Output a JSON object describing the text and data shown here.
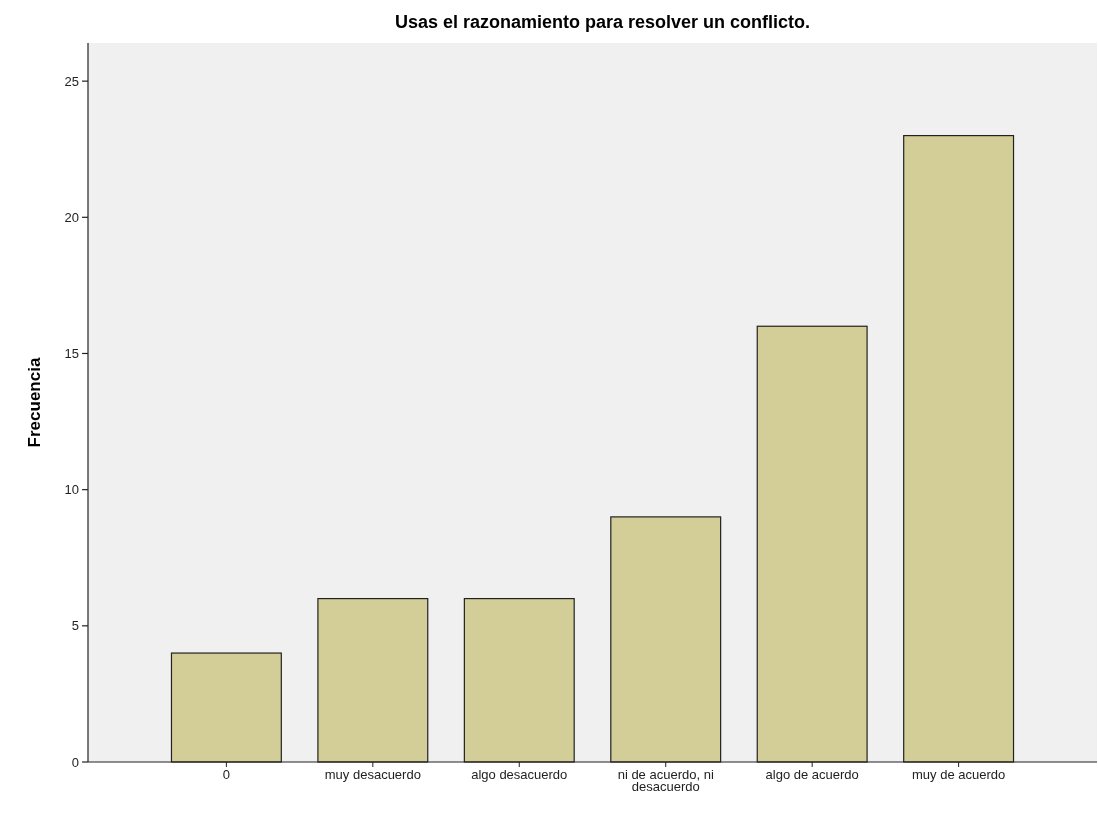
{
  "chart_data": {
    "type": "bar",
    "title": "Usas el razonamiento para resolver un conflicto.",
    "ylabel": "Frecuencia",
    "categories": [
      "0",
      "muy desacuerdo",
      "algo desacuerdo",
      "ni de acuerdo, ni desacuerdo",
      "algo de acuerdo",
      "muy de acuerdo"
    ],
    "values": [
      4,
      6,
      6,
      9,
      16,
      23
    ],
    "color": "#d3ce97",
    "ylim": [
      0,
      26.4
    ],
    "yticks": [
      0,
      5,
      10,
      15,
      20,
      25
    ],
    "grid": false
  }
}
